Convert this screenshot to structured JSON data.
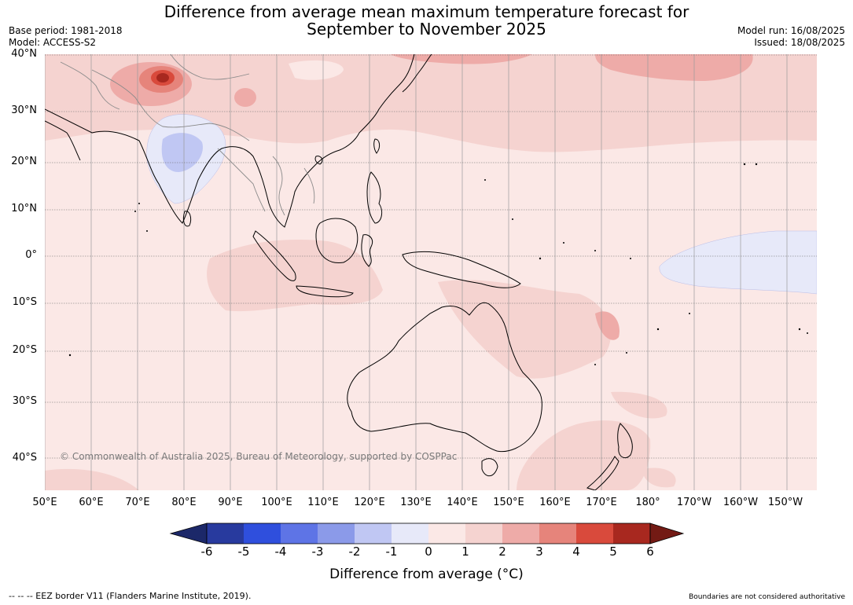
{
  "header": {
    "title_line1": "Difference from average mean maximum temperature forecast for",
    "title_line2": "September to November 2025",
    "base_period": "Base period: 1981-2018",
    "model": "Model: ACCESS-S2",
    "model_run": "Model run: 16/08/2025",
    "issued": "Issued: 18/08/2025"
  },
  "map": {
    "lat_labels": [
      "40°N",
      "30°N",
      "20°N",
      "10°N",
      "0°",
      "10°S",
      "20°S",
      "30°S",
      "40°S"
    ],
    "lon_labels": [
      "50°E",
      "60°E",
      "70°E",
      "80°E",
      "90°E",
      "100°E",
      "110°E",
      "120°E",
      "130°E",
      "140°E",
      "150°E",
      "160°E",
      "170°E",
      "180°",
      "170°W",
      "160°W",
      "150°W"
    ],
    "copyright": "© Commonwealth of Australia 2025, Bureau of Meteorology, supported by COSPPac",
    "colors": {
      "anom_0_1": "#fbe8e6",
      "anom_1_2": "#f5d3d0",
      "anom_2_3": "#eeaba8",
      "anom_3_4": "#e6847b",
      "anom_4_5": "#d94a3c",
      "anom_5_6": "#a8281f",
      "anom_m1_0": "#e7e9f9",
      "anom_m2_m1": "#c0c7f3",
      "land_outline": "#000000",
      "border": "#8a8a8a"
    }
  },
  "colorbar": {
    "title": "Difference from average (°C)",
    "ticks": [
      "-6",
      "-5",
      "-4",
      "-3",
      "-2",
      "-1",
      "0",
      "1",
      "2",
      "3",
      "4",
      "5",
      "6"
    ],
    "colors": [
      "#283a9e",
      "#2f4fdd",
      "#5e74e6",
      "#8b9ae9",
      "#c0c7f3",
      "#e7e9f9",
      "#fbe8e6",
      "#f5d3d0",
      "#eeaba8",
      "#e6847b",
      "#d94a3c",
      "#a8281f"
    ],
    "under_color": "#1c2869",
    "over_color": "#731a14"
  },
  "footer": {
    "eez_note": "--  --  -- EEZ border V11 (Flanders Marine Institute, 2019).",
    "boundaries_note": "Boundaries are not considered authoritative"
  }
}
